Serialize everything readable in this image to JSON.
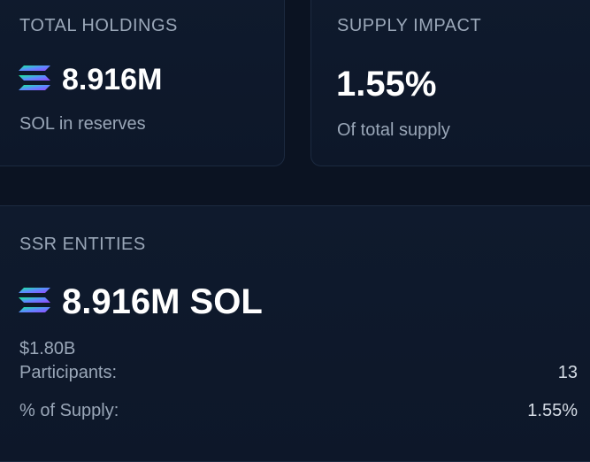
{
  "holdings": {
    "title": "TOTAL HOLDINGS",
    "value": "8.916M",
    "subtitle": "SOL in reserves",
    "logo_icon": "solana-logo"
  },
  "supply_impact": {
    "title": "SUPPLY IMPACT",
    "value": "1.55%",
    "subtitle": "Of total supply"
  },
  "ssr_entities": {
    "title": "SSR ENTITIES",
    "value": "8.916M SOL",
    "usd_value": "$1.80B",
    "logo_icon": "solana-logo",
    "rows": [
      {
        "label": "Participants:",
        "value": "13"
      },
      {
        "label": "% of Supply:",
        "value": "1.55%"
      }
    ]
  },
  "colors": {
    "background": "#0b1322",
    "card": "#0f1a2d",
    "muted_text": "#9aa7b8",
    "solana_gradient": [
      "#14f195",
      "#5b8bff",
      "#9945ff"
    ]
  }
}
